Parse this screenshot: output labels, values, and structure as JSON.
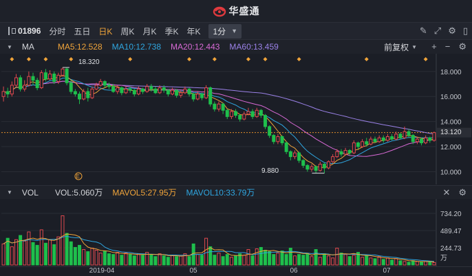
{
  "app": {
    "title": "华盛通"
  },
  "toolbar": {
    "stock_code": "01896",
    "period_tabs": [
      "分时",
      "五日",
      "日K",
      "周K",
      "月K",
      "季K",
      "年K"
    ],
    "active_tab": "日K",
    "interval_value": "1分",
    "icons": [
      "pen-icon",
      "fullscreen-icon",
      "settings-icon",
      "sidebar-icon"
    ]
  },
  "ma_bar": {
    "label": "MA",
    "ma5": "MA5:12.528",
    "ma10": "MA10:12.738",
    "ma20": "MA20:12.443",
    "ma60": "MA60:13.459",
    "adjust_label": "前复权"
  },
  "vol_bar": {
    "label": "VOL",
    "vol": "VOL:5.060万",
    "mavol5": "MAVOL5:27.95万",
    "mavol10": "MAVOL10:33.79万"
  },
  "price_axis": {
    "ticks": [
      "18.000",
      "16.000",
      "14.000",
      "12.000",
      "10.000"
    ],
    "current_price": "13.120"
  },
  "annotations": {
    "high": "18.320",
    "low": "9.880",
    "event_marker": "E"
  },
  "volume_axis": {
    "ticks": [
      "734.20",
      "489.47",
      "244.73"
    ],
    "unit": "万"
  },
  "date_axis": [
    "2019-04",
    "05",
    "06",
    "07"
  ],
  "colors": {
    "up": "#e04a4f",
    "down": "#1fbf4c",
    "ma5": "#f0a43a",
    "ma10": "#2fa6e0",
    "ma20": "#d96ad6",
    "ma60": "#9b82e8",
    "current_line": "#e6912c"
  },
  "chart_data": {
    "type": "candlestick",
    "title": "",
    "series": [
      {
        "name": "MA5",
        "value": 12.528
      },
      {
        "name": "MA10",
        "value": 12.738
      },
      {
        "name": "MA20",
        "value": 12.443
      },
      {
        "name": "MA60",
        "value": 13.459
      }
    ],
    "ylim": [
      9.2,
      19.2
    ],
    "high": 18.32,
    "low": 9.88,
    "last": 13.12,
    "candles": [
      [
        16.0,
        16.4,
        16.8,
        15.6
      ],
      [
        16.4,
        16.2,
        16.7,
        15.9
      ],
      [
        16.2,
        16.9,
        17.2,
        16.0
      ],
      [
        16.9,
        17.5,
        17.8,
        16.8
      ],
      [
        17.5,
        16.6,
        17.7,
        16.4
      ],
      [
        16.6,
        16.9,
        17.3,
        16.4
      ],
      [
        16.9,
        17.6,
        18.0,
        16.8
      ],
      [
        17.6,
        17.3,
        17.9,
        16.9
      ],
      [
        17.3,
        16.7,
        17.5,
        16.5
      ],
      [
        16.7,
        17.9,
        18.1,
        16.6
      ],
      [
        17.9,
        17.4,
        18.2,
        17.2
      ],
      [
        17.4,
        17.8,
        18.1,
        17.3
      ],
      [
        17.8,
        17.2,
        18.0,
        17.0
      ],
      [
        17.2,
        17.7,
        17.9,
        17.0
      ],
      [
        17.7,
        18.2,
        18.32,
        17.6
      ],
      [
        18.2,
        17.1,
        18.3,
        16.9
      ],
      [
        17.1,
        16.4,
        17.3,
        16.2
      ],
      [
        16.4,
        16.2,
        16.6,
        16.0
      ],
      [
        16.2,
        15.8,
        16.4,
        15.4
      ],
      [
        15.8,
        16.4,
        16.6,
        15.7
      ],
      [
        16.4,
        15.9,
        16.7,
        15.6
      ],
      [
        15.9,
        16.6,
        16.8,
        15.8
      ],
      [
        16.6,
        16.9,
        17.1,
        16.5
      ],
      [
        16.9,
        17.2,
        17.4,
        16.8
      ],
      [
        17.2,
        16.9,
        17.3,
        16.7
      ],
      [
        16.9,
        16.8,
        17.1,
        16.6
      ],
      [
        16.8,
        16.4,
        17.0,
        16.3
      ],
      [
        16.4,
        16.7,
        16.9,
        16.2
      ],
      [
        16.7,
        16.3,
        16.8,
        16.1
      ],
      [
        16.3,
        16.6,
        16.8,
        16.2
      ],
      [
        16.6,
        16.5,
        16.8,
        16.3
      ],
      [
        16.5,
        16.2,
        16.6,
        16.0
      ],
      [
        16.2,
        16.6,
        16.8,
        16.1
      ],
      [
        16.6,
        16.4,
        16.7,
        16.2
      ],
      [
        16.4,
        16.8,
        17.0,
        16.3
      ],
      [
        16.8,
        16.6,
        17.0,
        16.4
      ],
      [
        16.6,
        16.3,
        16.8,
        16.2
      ],
      [
        16.3,
        16.7,
        16.9,
        16.2
      ],
      [
        16.7,
        16.5,
        16.9,
        16.3
      ],
      [
        16.5,
        16.2,
        16.6,
        16.0
      ],
      [
        16.2,
        16.5,
        16.7,
        16.1
      ],
      [
        16.5,
        16.1,
        16.6,
        15.9
      ],
      [
        16.1,
        16.3,
        16.5,
        15.9
      ],
      [
        16.3,
        16.6,
        16.8,
        16.2
      ],
      [
        16.6,
        16.2,
        16.7,
        16.0
      ],
      [
        16.2,
        15.8,
        16.3,
        15.6
      ],
      [
        15.8,
        16.2,
        16.4,
        15.7
      ],
      [
        16.2,
        15.9,
        16.3,
        15.7
      ],
      [
        15.9,
        16.7,
        16.9,
        15.8
      ],
      [
        16.7,
        15.4,
        16.8,
        15.2
      ],
      [
        15.4,
        15.0,
        15.6,
        14.8
      ],
      [
        15.0,
        15.4,
        15.6,
        14.8
      ],
      [
        15.4,
        14.9,
        15.5,
        14.6
      ],
      [
        14.9,
        14.4,
        15.0,
        14.2
      ],
      [
        14.4,
        14.8,
        15.0,
        14.2
      ],
      [
        14.8,
        14.5,
        15.0,
        14.3
      ],
      [
        14.5,
        14.2,
        14.6,
        14.0
      ],
      [
        14.2,
        14.6,
        14.8,
        14.1
      ],
      [
        14.6,
        14.8,
        15.1,
        14.5
      ],
      [
        14.8,
        14.4,
        15.0,
        14.2
      ],
      [
        14.4,
        14.9,
        15.1,
        14.3
      ],
      [
        14.9,
        14.5,
        15.0,
        14.3
      ],
      [
        14.5,
        13.6,
        14.6,
        13.4
      ],
      [
        13.6,
        12.9,
        13.7,
        12.7
      ],
      [
        12.9,
        12.4,
        13.0,
        12.2
      ],
      [
        12.4,
        12.8,
        13.0,
        12.2
      ],
      [
        12.8,
        12.3,
        12.9,
        12.1
      ],
      [
        12.3,
        11.6,
        12.4,
        11.4
      ],
      [
        11.6,
        11.2,
        11.7,
        10.9
      ],
      [
        11.2,
        11.5,
        11.7,
        11.0
      ],
      [
        11.5,
        10.9,
        11.6,
        10.7
      ],
      [
        10.9,
        10.5,
        11.0,
        10.3
      ],
      [
        10.5,
        10.2,
        10.6,
        10.0
      ],
      [
        10.2,
        10.4,
        10.6,
        10.0
      ],
      [
        10.4,
        10.1,
        10.5,
        9.9
      ],
      [
        10.1,
        10.6,
        10.8,
        10.0
      ],
      [
        10.6,
        10.3,
        10.7,
        9.88
      ],
      [
        10.3,
        10.8,
        10.9,
        10.2
      ],
      [
        10.8,
        11.2,
        11.4,
        10.7
      ],
      [
        11.2,
        11.6,
        11.8,
        11.1
      ],
      [
        11.6,
        11.4,
        11.8,
        11.2
      ],
      [
        11.4,
        11.7,
        11.9,
        11.3
      ],
      [
        11.7,
        11.5,
        11.8,
        11.3
      ],
      [
        11.5,
        12.3,
        12.5,
        11.4
      ],
      [
        12.3,
        12.0,
        12.4,
        11.8
      ],
      [
        12.0,
        12.4,
        12.6,
        11.9
      ],
      [
        12.4,
        12.2,
        12.7,
        12.0
      ],
      [
        12.2,
        12.6,
        12.8,
        12.1
      ],
      [
        12.6,
        12.4,
        12.8,
        12.3
      ],
      [
        12.4,
        12.7,
        12.9,
        12.3
      ],
      [
        12.7,
        12.5,
        12.9,
        12.3
      ],
      [
        12.5,
        12.8,
        13.0,
        12.4
      ],
      [
        12.8,
        12.6,
        13.0,
        12.5
      ],
      [
        12.6,
        13.0,
        13.2,
        12.5
      ],
      [
        13.0,
        12.7,
        13.1,
        12.6
      ],
      [
        12.7,
        13.2,
        13.6,
        12.6
      ],
      [
        13.2,
        12.9,
        13.4,
        12.7
      ],
      [
        12.9,
        12.4,
        13.0,
        12.2
      ],
      [
        12.4,
        12.6,
        12.8,
        12.2
      ],
      [
        12.6,
        12.3,
        12.7,
        12.1
      ],
      [
        12.3,
        12.7,
        12.9,
        12.2
      ],
      [
        12.7,
        12.5,
        12.8,
        12.3
      ],
      [
        12.5,
        13.12,
        13.2,
        12.4
      ]
    ],
    "volumes": [
      300,
      380,
      260,
      360,
      420,
      340,
      470,
      320,
      280,
      500,
      310,
      360,
      290,
      400,
      700,
      450,
      330,
      250,
      280,
      220,
      190,
      240,
      210,
      170,
      200,
      160,
      150,
      180,
      140,
      170,
      150,
      130,
      160,
      140,
      180,
      150,
      120,
      160,
      130,
      110,
      140,
      120,
      130,
      160,
      120,
      300,
      150,
      140,
      380,
      260,
      140,
      170,
      120,
      150,
      110,
      130,
      160,
      140,
      220,
      130,
      230,
      250,
      210,
      190,
      150,
      170,
      200,
      150,
      240,
      130,
      150,
      140,
      160,
      120,
      220,
      110,
      160,
      130,
      100,
      240,
      170,
      150,
      120,
      140,
      180,
      110,
      130,
      100,
      90,
      120,
      80,
      100,
      70,
      90,
      60,
      50,
      40,
      60,
      50,
      45,
      50,
      40,
      35
    ],
    "volume_ylim": [
      0,
      900
    ]
  }
}
